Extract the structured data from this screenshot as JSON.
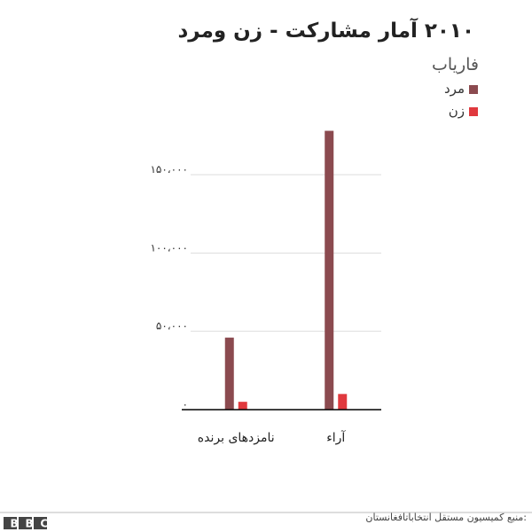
{
  "chart_data": {
    "type": "bar",
    "title": "۲۰۱۰ آمار مشارکت - زن ومرد",
    "subtitle": "فاریاب",
    "categories": [
      "نامزدهای برنده",
      "آراء"
    ],
    "series": [
      {
        "name": "مرد",
        "color": "#8b4a4f",
        "values": [
          46000,
          178000
        ]
      },
      {
        "name": "زن",
        "color": "#e0393e",
        "values": [
          5000,
          10000
        ]
      }
    ],
    "ylim": [
      0,
      180000
    ],
    "yticks": [
      {
        "value": 0,
        "label": "۰"
      },
      {
        "value": 50000,
        "label": "۵۰،۰۰۰"
      },
      {
        "value": 100000,
        "label": "۱۰۰،۰۰۰"
      },
      {
        "value": 150000,
        "label": "۱۵۰،۰۰۰"
      }
    ],
    "grid": true,
    "source": ":منبع کمیسیون مستقل انتخاباتافغانستان",
    "logo": "BBC"
  }
}
